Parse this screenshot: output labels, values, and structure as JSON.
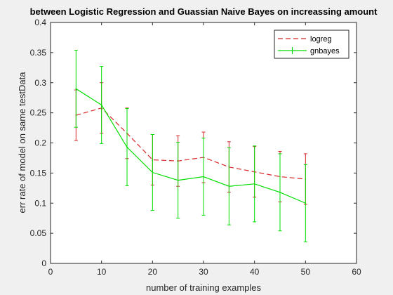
{
  "chart_data": {
    "type": "line",
    "title": "between Logistic Regression and Guassian Naive Bayes on increassing amount",
    "xlabel": "number of training examples",
    "ylabel": "err rate of model on same testData",
    "xlim": [
      0,
      60
    ],
    "ylim": [
      0,
      0.4
    ],
    "xticks": [
      0,
      10,
      20,
      30,
      40,
      50,
      60
    ],
    "yticks": [
      0,
      0.05,
      0.1,
      0.15,
      0.2,
      0.25,
      0.3,
      0.35,
      0.4
    ],
    "xtick_labels": [
      "0",
      "10",
      "20",
      "30",
      "40",
      "50",
      "60"
    ],
    "ytick_labels": [
      "0",
      "0.05",
      "0.1",
      "0.15",
      "0.2",
      "0.25",
      "0.3",
      "0.35",
      "0.4"
    ],
    "grid": false,
    "legend_position": "top-right",
    "x": [
      5,
      10,
      15,
      20,
      25,
      30,
      35,
      40,
      45,
      50
    ],
    "series": [
      {
        "name": "logreg",
        "color": "#d62728",
        "line_style": "dashed",
        "y": [
          0.246,
          0.258,
          0.216,
          0.172,
          0.17,
          0.176,
          0.16,
          0.152,
          0.144,
          0.14
        ],
        "err": [
          0.042,
          0.042,
          0.042,
          0.042,
          0.042,
          0.042,
          0.042,
          0.042,
          0.042,
          0.042
        ]
      },
      {
        "name": "gnbayes",
        "color": "#00dd00",
        "line_style": "solid",
        "y": [
          0.29,
          0.263,
          0.193,
          0.151,
          0.138,
          0.144,
          0.128,
          0.132,
          0.118,
          0.1
        ],
        "err": [
          0.064,
          0.064,
          0.064,
          0.063,
          0.063,
          0.064,
          0.064,
          0.063,
          0.064,
          0.064
        ]
      }
    ]
  }
}
